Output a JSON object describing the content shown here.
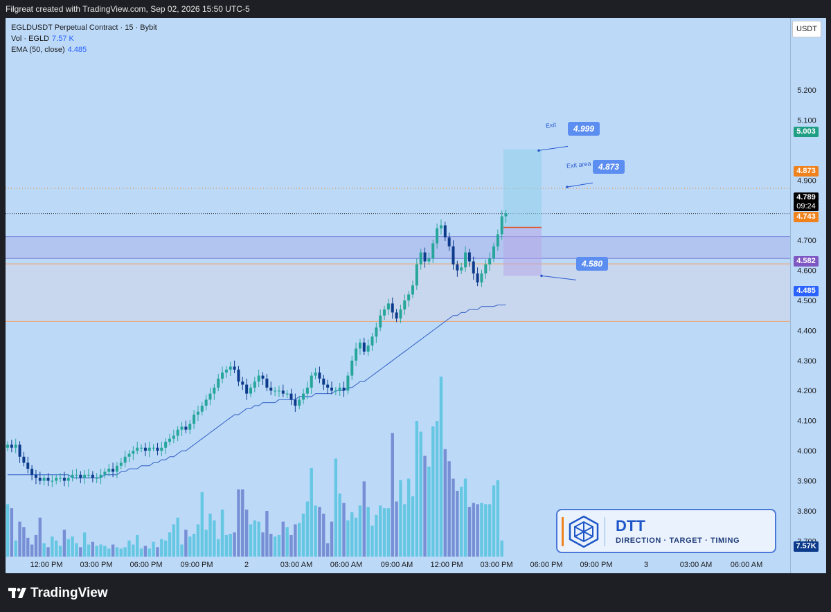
{
  "header": {
    "title": "Filgreat created with TradingView.com, Sep 02, 2026 15:50 UTC-5"
  },
  "legend": {
    "symbol": "EGLDUSDT Perpetual Contract · 15 · Bybit",
    "vol_label": "Vol · EGLD",
    "vol_value": "7.57 K",
    "ema_label": "EMA (50, close)",
    "ema_value": "4.485"
  },
  "currency_button": "USDT",
  "price_tags": {
    "target": "5.003",
    "exit_area": "4.873",
    "last": "4.789",
    "countdown": "09:24",
    "entry": "4.743",
    "stop": "4.582",
    "ema": "4.485",
    "volume": "7.57K"
  },
  "annotations": {
    "exit_text": "Exit",
    "exit_value": "4.999",
    "exit_area_text": "Exit area",
    "exit_area_value": "4.873",
    "stop_value": "4.580"
  },
  "branding": {
    "dtt_title": "DTT",
    "dtt_subtitle": "DIRECTION · TARGET · TIMING",
    "tv_logo": "TradingView"
  },
  "colors": {
    "background": "#bcd9f8",
    "bull": "#26a69a",
    "bear": "#0d3b8c",
    "ema": "#2f5fc4",
    "target_green": "#1e9e82",
    "exit_orange": "#f0821e",
    "stop_purple": "#7e57c2",
    "ema_blue": "#2962ff"
  },
  "chart_data": {
    "type": "candlestick",
    "y_ticks": [
      "5.200",
      "5.100",
      "4.900",
      "4.700",
      "4.600",
      "4.500",
      "4.400",
      "4.300",
      "4.200",
      "4.100",
      "4.000",
      "3.900",
      "3.800",
      "3.700"
    ],
    "ylim": [
      3.62,
      5.44
    ],
    "x_ticks": [
      "12:00 PM",
      "03:00 PM",
      "06:00 PM",
      "09:00 PM",
      "2",
      "03:00 AM",
      "06:00 AM",
      "09:00 AM",
      "12:00 PM",
      "03:00 PM",
      "06:00 PM",
      "09:00 PM",
      "3",
      "03:00 AM",
      "06:00 AM"
    ],
    "close": [
      4.02,
      4.01,
      4.02,
      3.98,
      3.96,
      3.94,
      3.92,
      3.91,
      3.9,
      3.91,
      3.9,
      3.9,
      3.91,
      3.91,
      3.9,
      3.91,
      3.92,
      3.92,
      3.91,
      3.92,
      3.92,
      3.91,
      3.91,
      3.92,
      3.93,
      3.94,
      3.93,
      3.95,
      3.96,
      3.98,
      3.99,
      4.0,
      4.01,
      4.01,
      4.0,
      4.01,
      4.01,
      4.0,
      4.01,
      4.03,
      4.04,
      4.05,
      4.07,
      4.08,
      4.07,
      4.09,
      4.12,
      4.13,
      4.15,
      4.17,
      4.19,
      4.21,
      4.24,
      4.26,
      4.27,
      4.28,
      4.27,
      4.23,
      4.22,
      4.19,
      4.21,
      4.23,
      4.25,
      4.24,
      4.21,
      4.2,
      4.2,
      4.2,
      4.19,
      4.19,
      4.17,
      4.15,
      4.17,
      4.19,
      4.21,
      4.25,
      4.26,
      4.24,
      4.22,
      4.21,
      4.2,
      4.2,
      4.21,
      4.2,
      4.25,
      4.3,
      4.34,
      4.36,
      4.33,
      4.35,
      4.38,
      4.41,
      4.45,
      4.47,
      4.49,
      4.46,
      4.44,
      4.47,
      4.5,
      4.52,
      4.55,
      4.62,
      4.66,
      4.63,
      4.64,
      4.69,
      4.74,
      4.75,
      4.71,
      4.68,
      4.62,
      4.6,
      4.61,
      4.66,
      4.63,
      4.59,
      4.56,
      4.59,
      4.62,
      4.64,
      4.68,
      4.72,
      4.78,
      4.79
    ],
    "ema": [
      3.92,
      3.92,
      3.92,
      3.92,
      3.92,
      3.92,
      3.92,
      3.92,
      3.92,
      3.92,
      3.92,
      3.92,
      3.92,
      3.92,
      3.92,
      3.92,
      3.91,
      3.91,
      3.91,
      3.91,
      3.91,
      3.91,
      3.91,
      3.91,
      3.92,
      3.92,
      3.92,
      3.92,
      3.93,
      3.93,
      3.94,
      3.94,
      3.94,
      3.95,
      3.95,
      3.95,
      3.96,
      3.96,
      3.97,
      3.97,
      3.98,
      3.98,
      3.99,
      4.0,
      4.0,
      4.01,
      4.02,
      4.03,
      4.04,
      4.05,
      4.06,
      4.07,
      4.08,
      4.09,
      4.1,
      4.11,
      4.12,
      4.12,
      4.13,
      4.14,
      4.14,
      4.15,
      4.15,
      4.16,
      4.16,
      4.16,
      4.16,
      4.17,
      4.17,
      4.17,
      4.17,
      4.17,
      4.18,
      4.18,
      4.18,
      4.18,
      4.19,
      4.19,
      4.19,
      4.19,
      4.19,
      4.2,
      4.2,
      4.2,
      4.21,
      4.21,
      4.22,
      4.23,
      4.23,
      4.24,
      4.25,
      4.26,
      4.27,
      4.28,
      4.29,
      4.3,
      4.31,
      4.32,
      4.33,
      4.34,
      4.35,
      4.36,
      4.37,
      4.38,
      4.39,
      4.4,
      4.41,
      4.42,
      4.43,
      4.44,
      4.45,
      4.45,
      4.46,
      4.46,
      4.47,
      4.47,
      4.47,
      4.48,
      4.48,
      4.48,
      4.48,
      4.485,
      4.485,
      4.485
    ],
    "volume": [
      3.9,
      3.6,
      1.2,
      2.6,
      2.2,
      1.4,
      0.9,
      1.6,
      2.9,
      1.0,
      0.7,
      1.5,
      1.2,
      0.8,
      2.0,
      1.3,
      1.5,
      1.0,
      0.7,
      1.8,
      0.9,
      1.1,
      0.8,
      0.9,
      0.8,
      0.6,
      0.9,
      0.7,
      0.6,
      0.7,
      1.2,
      0.9,
      1.6,
      0.6,
      0.8,
      0.6,
      1.1,
      0.7,
      1.3,
      1.2,
      1.8,
      2.4,
      2.9,
      0.9,
      2.0,
      1.5,
      1.7,
      2.4,
      4.8,
      2.0,
      3.2,
      2.7,
      1.3,
      3.5,
      1.6,
      1.7,
      1.8,
      5.0,
      5.0,
      3.5,
      2.4,
      2.7,
      2.6,
      1.8,
      3.4,
      1.7,
      1.5,
      1.6,
      2.6,
      2.2,
      1.6,
      2.4,
      2.5,
      3.2,
      4.1,
      6.6,
      3.8,
      3.7,
      3.2,
      1.0,
      2.6,
      7.3,
      4.7,
      4.0,
      2.7,
      3.3,
      2.9,
      3.8,
      5.6,
      3.7,
      2.3,
      3.1,
      3.8,
      3.6,
      3.6,
      9.2,
      4.1,
      5.7,
      3.9,
      5.8,
      4.5,
      10.1,
      9.3,
      7.5,
      6.7,
      9.7,
      10.1,
      13.4,
      8.0,
      7.1,
      5.8,
      4.9,
      5.2,
      5.8,
      3.7,
      4.0,
      3.9,
      4.0,
      3.9,
      3.9,
      5.3,
      5.7,
      1.2,
      0.0
    ]
  }
}
